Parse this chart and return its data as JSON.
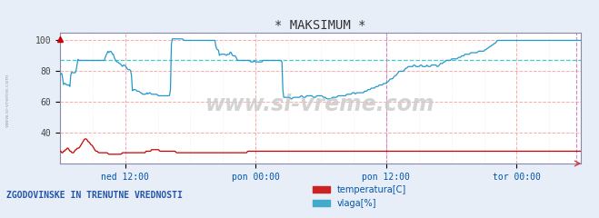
{
  "title": "* MAKSIMUM *",
  "title_color": "#333333",
  "bg_color": "#e8eef8",
  "plot_bg_color": "#ffffff",
  "watermark": "www.si-vreme.com",
  "watermark_color": "#cccccc",
  "xlabel_color": "#0055aa",
  "yticks": [
    40,
    60,
    80,
    100
  ],
  "ylim": [
    20,
    105
  ],
  "xtick_positions": [
    72,
    216,
    360,
    504
  ],
  "xtick_labels": [
    "ned 12:00",
    "pon 00:00",
    "pon 12:00",
    "tor 00:00"
  ],
  "grid_color_major": "#ffaaaa",
  "grid_color_minor": "#ffdddd",
  "vline_color": "#cc88cc",
  "vline_x": 360,
  "right_vline_x": 570,
  "right_vline_color": "#cc88cc",
  "hline_y": 87,
  "hline_color": "#44cccc",
  "temp_color": "#cc0000",
  "vlaga_color": "#2299cc",
  "legend_label_temp": "temperatura[C]",
  "legend_label_vlaga": "vlaga[%]",
  "legend_color_temp": "#cc2222",
  "legend_color_vlaga": "#44aacc",
  "bottom_label": "ZGODOVINSKE IN TRENUTNE VREDNOSTI",
  "bottom_label_color": "#2255aa",
  "arrow_color": "#cc0000",
  "n_points": 576,
  "temp_data": [
    28,
    28,
    27,
    27,
    28,
    28,
    29,
    29,
    30,
    30,
    29,
    28,
    28,
    27,
    27,
    27,
    28,
    29,
    29,
    30,
    30,
    30,
    31,
    32,
    33,
    34,
    35,
    36,
    36,
    36,
    35,
    34,
    34,
    33,
    32,
    32,
    31,
    30,
    29,
    28,
    28,
    28,
    27,
    27,
    27,
    27,
    27,
    27,
    27,
    27,
    27,
    27,
    27,
    26,
    26,
    26,
    26,
    26,
    26,
    26,
    26,
    26,
    26,
    26,
    26,
    26,
    26,
    26,
    27,
    27,
    27,
    27,
    27,
    27,
    27,
    27,
    27,
    27,
    27,
    27,
    27,
    27,
    27,
    27,
    27,
    27,
    27,
    27,
    27,
    27,
    27,
    27,
    27,
    27,
    28,
    28,
    28,
    28,
    28,
    28,
    29,
    29,
    29,
    29,
    29,
    29,
    29,
    29,
    29,
    28,
    28,
    28,
    28,
    28,
    28,
    28,
    28,
    28,
    28,
    28,
    28,
    28,
    28,
    28,
    28,
    28,
    28,
    27,
    27,
    27,
    27,
    27,
    27,
    27,
    27,
    27,
    27,
    27,
    27,
    27,
    27,
    27,
    27,
    27,
    27,
    27,
    27,
    27,
    27,
    27,
    27,
    27,
    27,
    27,
    27,
    27,
    27,
    27,
    27,
    27,
    27,
    27,
    27,
    27,
    27,
    27,
    27,
    27,
    27,
    27,
    27,
    27,
    27,
    27,
    27,
    27,
    27,
    27,
    27,
    27,
    27,
    27,
    27,
    27,
    27,
    27,
    27,
    27,
    27,
    27,
    27,
    27,
    27,
    27,
    27,
    27,
    27,
    27,
    27,
    27,
    27,
    27,
    27,
    27,
    27,
    28,
    28,
    28,
    28,
    28,
    28,
    28,
    28,
    28,
    28,
    28,
    28,
    28,
    28,
    28,
    28,
    28,
    28,
    28,
    28,
    28,
    28,
    28,
    28,
    28,
    28,
    28,
    28,
    28,
    28,
    28,
    28,
    28,
    28,
    28,
    28,
    28,
    28,
    28,
    28,
    28,
    28,
    28,
    28,
    28,
    28,
    28,
    28,
    28,
    28,
    28,
    28,
    28,
    28,
    28,
    28,
    28,
    28,
    28,
    28,
    28,
    28,
    28,
    28,
    28,
    28,
    28,
    28,
    28,
    28,
    28,
    28,
    28,
    28,
    28,
    28,
    28,
    28,
    28,
    28,
    28,
    28,
    28,
    28,
    28,
    28,
    28,
    28,
    28,
    28,
    28,
    28,
    28,
    28,
    28,
    28,
    28,
    28,
    28,
    28,
    28,
    28,
    28,
    28,
    28,
    28,
    28,
    28,
    28,
    28,
    28,
    28,
    28,
    28,
    28,
    28,
    28,
    28,
    28,
    28,
    28,
    28,
    28,
    28,
    28,
    28,
    28,
    28,
    28,
    28,
    28,
    28,
    28,
    28,
    28,
    28,
    28,
    28,
    28,
    28,
    28,
    28,
    28,
    28,
    28,
    28,
    28,
    28,
    28,
    28,
    28,
    28,
    28,
    28,
    28,
    28,
    28,
    28,
    28,
    28,
    28,
    28,
    28,
    28,
    28,
    28,
    28,
    28,
    28,
    28,
    28,
    28,
    28,
    28,
    28,
    28,
    28,
    28,
    28,
    28,
    28,
    28,
    28,
    28,
    28,
    28,
    28,
    28,
    28,
    28,
    28,
    28,
    28,
    28,
    28,
    28,
    28,
    28,
    28,
    28,
    28,
    28,
    28,
    28,
    28,
    28,
    28,
    28,
    28,
    28,
    28,
    28,
    28,
    28,
    28,
    28,
    28,
    28,
    28,
    28,
    28,
    28,
    28,
    28,
    28,
    28,
    28,
    28,
    28,
    28,
    28,
    28,
    28,
    28,
    28,
    28,
    28,
    28,
    28,
    28,
    28,
    28,
    28,
    28,
    28,
    28,
    28,
    28,
    28,
    28,
    28,
    28,
    28,
    28,
    28,
    28,
    28,
    28,
    28,
    28,
    28,
    28,
    28,
    28,
    28,
    28,
    28,
    28,
    28,
    28,
    28,
    28,
    28,
    28,
    28,
    28,
    28,
    28,
    28,
    28,
    28,
    28,
    28,
    28,
    28,
    28,
    28,
    28,
    28,
    28,
    28,
    28,
    28,
    28,
    28,
    28,
    28,
    28,
    28,
    28,
    28,
    28,
    28,
    28,
    28,
    28,
    28,
    28,
    28,
    28,
    28,
    28,
    28,
    28,
    28,
    28,
    28,
    28,
    28,
    28,
    28,
    28,
    28,
    28,
    28,
    28,
    28,
    28,
    28,
    28,
    28,
    28,
    28,
    28,
    28,
    28,
    28,
    28,
    28,
    28,
    28,
    28,
    28,
    28,
    28,
    28,
    28,
    28,
    28,
    28,
    28,
    28,
    28,
    28,
    28,
    28,
    28,
    28,
    28,
    28,
    28,
    28,
    28,
    28,
    28
  ],
  "vlaga_data": [
    78,
    78,
    79,
    71,
    72,
    72,
    71,
    71,
    71,
    70,
    80,
    79,
    79,
    79,
    79,
    82,
    88,
    87,
    87,
    87,
    87,
    87,
    87,
    87,
    87,
    87,
    87,
    87,
    87,
    87,
    87,
    87,
    87,
    87,
    87,
    87,
    87,
    87,
    87,
    87,
    87,
    90,
    91,
    93,
    92,
    93,
    93,
    91,
    91,
    88,
    87,
    86,
    86,
    85,
    85,
    84,
    83,
    84,
    84,
    83,
    82,
    81,
    81,
    81,
    79,
    67,
    68,
    68,
    68,
    67,
    67,
    67,
    66,
    66,
    65,
    65,
    65,
    65,
    66,
    65,
    66,
    66,
    65,
    65,
    65,
    65,
    65,
    65,
    64,
    64,
    64,
    64,
    64,
    64,
    64,
    64,
    64,
    64,
    64,
    65,
    101,
    101,
    101,
    101,
    101,
    101,
    101,
    101,
    101,
    101,
    101,
    100,
    100,
    100,
    100,
    100,
    100,
    100,
    100,
    100,
    100,
    100,
    100,
    100,
    100,
    100,
    100,
    100,
    100,
    100,
    100,
    100,
    100,
    100,
    100,
    100,
    100,
    100,
    100,
    100,
    95,
    94,
    94,
    90,
    91,
    91,
    91,
    91,
    91,
    90,
    91,
    91,
    91,
    93,
    91,
    90,
    90,
    90,
    89,
    87,
    87,
    87,
    87,
    87,
    87,
    87,
    87,
    87,
    87,
    87,
    87,
    86,
    86,
    86,
    87,
    86,
    86,
    86,
    86,
    86,
    86,
    86,
    87,
    87,
    87,
    87,
    87,
    87,
    87,
    87,
    87,
    87,
    87,
    87,
    87,
    87,
    87,
    87,
    87,
    86,
    63,
    63,
    63,
    63,
    63,
    63,
    63,
    62,
    62,
    63,
    63,
    63,
    63,
    63,
    63,
    63,
    64,
    64,
    63,
    63,
    63,
    64,
    64,
    64,
    64,
    64,
    64,
    63,
    63,
    63,
    64,
    64,
    64,
    64,
    64,
    64,
    63,
    63,
    63,
    62,
    62,
    62,
    62,
    62,
    63,
    63,
    63,
    63,
    63,
    64,
    64,
    64,
    64,
    64,
    64,
    64,
    64,
    65,
    65,
    65,
    65,
    65,
    66,
    66,
    66,
    65,
    66,
    66,
    66,
    66,
    66,
    66,
    66,
    67,
    67,
    67,
    68,
    68,
    68,
    69,
    69,
    69,
    69,
    70,
    70,
    70,
    71,
    71,
    71,
    71,
    72,
    72,
    72,
    73,
    73,
    74,
    75,
    75,
    75,
    76,
    77,
    77,
    78,
    79,
    80,
    80,
    80,
    80,
    80,
    81,
    82,
    82,
    83,
    83,
    83,
    83,
    83,
    84,
    84,
    83,
    83,
    83,
    83,
    84,
    84,
    83,
    83,
    83,
    83,
    84,
    83,
    83,
    83,
    84,
    84,
    84,
    84,
    84,
    83,
    83,
    84,
    85,
    85,
    85,
    86,
    86,
    87,
    87,
    87,
    87,
    87,
    88,
    88,
    88,
    88,
    88,
    88,
    89,
    89,
    89,
    90,
    90,
    90,
    91,
    91,
    91,
    91,
    91,
    92,
    92,
    92,
    92,
    92,
    92,
    92,
    93,
    93,
    93,
    93,
    93,
    93,
    94,
    94,
    95,
    95,
    96,
    96,
    97,
    97,
    98,
    98,
    99,
    100,
    100,
    100,
    100,
    100,
    100,
    100,
    100,
    100,
    100,
    100,
    100,
    100,
    100,
    100,
    100,
    100,
    100,
    100,
    100,
    100,
    100,
    100,
    100,
    100,
    100,
    100,
    100,
    100,
    100,
    100,
    100,
    100,
    100,
    100,
    100,
    100,
    100,
    100,
    100,
    100,
    100,
    100,
    100,
    100,
    100,
    100,
    100,
    100,
    100,
    100,
    100,
    100,
    100,
    100,
    100,
    100,
    100,
    100,
    100,
    100,
    100,
    100,
    100,
    100,
    100,
    100,
    100,
    100,
    100,
    100,
    100,
    100,
    100,
    100,
    100
  ]
}
